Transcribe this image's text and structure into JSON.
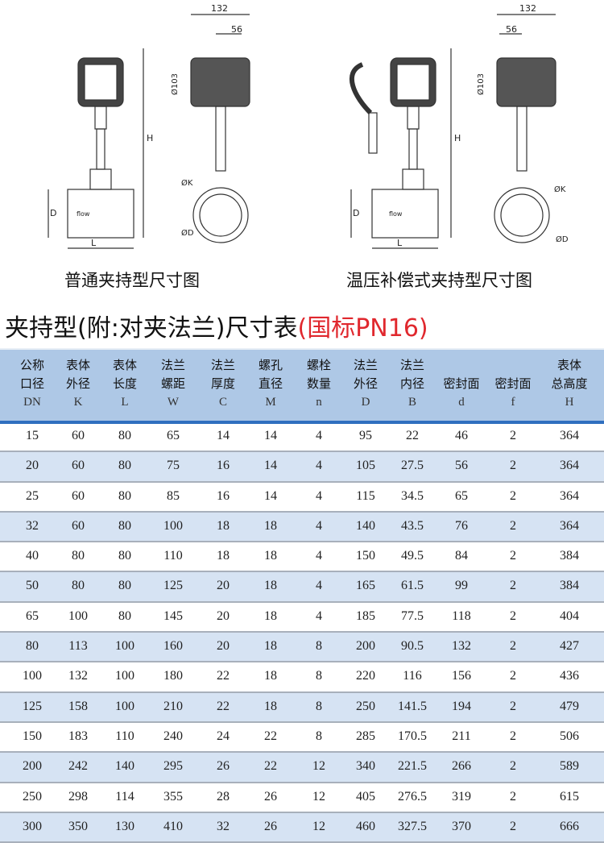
{
  "drawings": {
    "left_caption": "普通夹持型尺寸图",
    "right_caption": "温压补偿式夹持型尺寸图",
    "dims": {
      "width": "132",
      "offset": "56",
      "head_dia": "Ø103",
      "height": "H",
      "pipe_dia": "D",
      "length": "L",
      "k_dia": "ØK",
      "d_dia": "ØD",
      "flow": "flow"
    }
  },
  "title": {
    "main": "夹持型(附:对夹法兰)尺寸表",
    "standard": "(国标PN16)"
  },
  "colors": {
    "header_bg": "#aec8e6",
    "stripe": "#d6e3f3",
    "accent": "#2f6fbf",
    "red": "#e0282e"
  },
  "table": {
    "headers": [
      {
        "l1": "公称",
        "l2": "口径",
        "code": "DN"
      },
      {
        "l1": "表体",
        "l2": "外径",
        "code": "K"
      },
      {
        "l1": "表体",
        "l2": "长度",
        "code": "L"
      },
      {
        "l1": "法兰",
        "l2": "螺距",
        "code": "W"
      },
      {
        "l1": "法兰",
        "l2": "厚度",
        "code": "C"
      },
      {
        "l1": "螺孔",
        "l2": "直径",
        "code": "M"
      },
      {
        "l1": "螺栓",
        "l2": "数量",
        "code": "n"
      },
      {
        "l1": "法兰",
        "l2": "外径",
        "code": "D"
      },
      {
        "l1": "法兰",
        "l2": "内径",
        "code": "B"
      },
      {
        "l1": "",
        "l2": "密封面",
        "code": "d"
      },
      {
        "l1": "",
        "l2": "密封面",
        "code": "f"
      },
      {
        "l1": "表体",
        "l2": "总高度",
        "code": "H"
      }
    ],
    "rows": [
      [
        "15",
        "60",
        "80",
        "65",
        "14",
        "14",
        "4",
        "95",
        "22",
        "46",
        "2",
        "364"
      ],
      [
        "20",
        "60",
        "80",
        "75",
        "16",
        "14",
        "4",
        "105",
        "27.5",
        "56",
        "2",
        "364"
      ],
      [
        "25",
        "60",
        "80",
        "85",
        "16",
        "14",
        "4",
        "115",
        "34.5",
        "65",
        "2",
        "364"
      ],
      [
        "32",
        "60",
        "80",
        "100",
        "18",
        "18",
        "4",
        "140",
        "43.5",
        "76",
        "2",
        "364"
      ],
      [
        "40",
        "80",
        "80",
        "110",
        "18",
        "18",
        "4",
        "150",
        "49.5",
        "84",
        "2",
        "384"
      ],
      [
        "50",
        "80",
        "80",
        "125",
        "20",
        "18",
        "4",
        "165",
        "61.5",
        "99",
        "2",
        "384"
      ],
      [
        "65",
        "100",
        "80",
        "145",
        "20",
        "18",
        "4",
        "185",
        "77.5",
        "118",
        "2",
        "404"
      ],
      [
        "80",
        "113",
        "100",
        "160",
        "20",
        "18",
        "8",
        "200",
        "90.5",
        "132",
        "2",
        "427"
      ],
      [
        "100",
        "132",
        "100",
        "180",
        "22",
        "18",
        "8",
        "220",
        "116",
        "156",
        "2",
        "436"
      ],
      [
        "125",
        "158",
        "100",
        "210",
        "22",
        "18",
        "8",
        "250",
        "141.5",
        "194",
        "2",
        "479"
      ],
      [
        "150",
        "183",
        "110",
        "240",
        "24",
        "22",
        "8",
        "285",
        "170.5",
        "211",
        "2",
        "506"
      ],
      [
        "200",
        "242",
        "140",
        "295",
        "26",
        "22",
        "12",
        "340",
        "221.5",
        "266",
        "2",
        "589"
      ],
      [
        "250",
        "298",
        "114",
        "355",
        "28",
        "26",
        "12",
        "405",
        "276.5",
        "319",
        "2",
        "615"
      ],
      [
        "300",
        "350",
        "130",
        "410",
        "32",
        "26",
        "12",
        "460",
        "327.5",
        "370",
        "2",
        "666"
      ]
    ]
  }
}
